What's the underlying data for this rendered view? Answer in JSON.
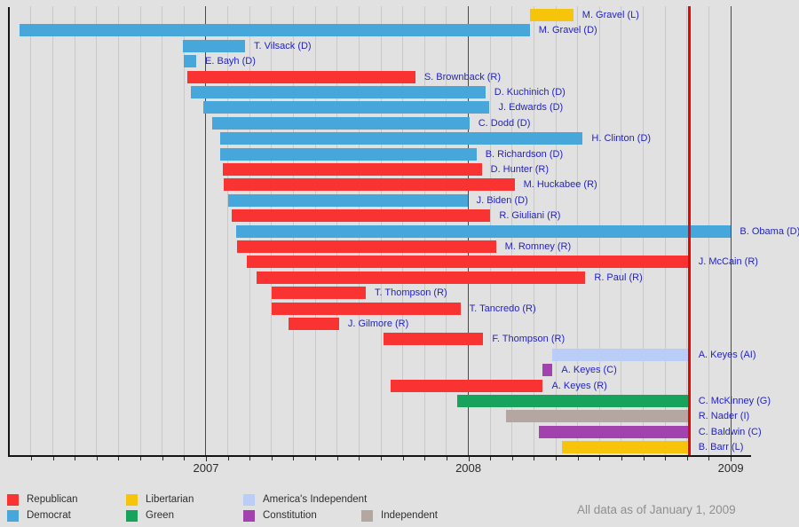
{
  "chart_data": {
    "type": "gantt",
    "description": "Timelines of 2008 U.S. presidential campaigns by candidate and party",
    "x_axis": {
      "xmin": 2006.249,
      "xmax": 2009.074,
      "major_ticks": [
        2007,
        2008,
        2009
      ],
      "tick_labels": [
        "2007",
        "2008",
        "2009"
      ],
      "minor_tick_start": 2006.3333,
      "minor_tick_end": 2008.9167,
      "minor_tick_step_months": 1,
      "grid": true
    },
    "election_line": {
      "x": 2008.843,
      "color": "#ee0202"
    },
    "party_colors": {
      "Republican": "#f93232",
      "Democrat": "#47a7db",
      "Libertarian": "#f6c50b",
      "Green": "#17a35c",
      "America's Independent": "#b9cdf6",
      "Constitution": "#a242ae",
      "Independent": "#b4a6a0"
    },
    "rows": [
      {
        "label": "M. Gravel (L)",
        "party": "Libertarian",
        "start": 2008.234,
        "end": 2008.4
      },
      {
        "label": "M. Gravel (D)",
        "party": "Democrat",
        "start": 2006.29,
        "end": 2008.234
      },
      {
        "label": "T. Vilsack (D)",
        "party": "Democrat",
        "start": 2006.912,
        "end": 2007.149
      },
      {
        "label": "E. Bayh (D)",
        "party": "Democrat",
        "start": 2006.916,
        "end": 2006.963
      },
      {
        "label": "S. Brownback (R)",
        "party": "Republican",
        "start": 2006.929,
        "end": 2007.798
      },
      {
        "label": "D. Kuchinich (D)",
        "party": "Democrat",
        "start": 2006.943,
        "end": 2008.065
      },
      {
        "label": "J. Edwards (D)",
        "party": "Democrat",
        "start": 2006.99,
        "end": 2008.081
      },
      {
        "label": "C. Dodd (D)",
        "party": "Democrat",
        "start": 2007.024,
        "end": 2008.004
      },
      {
        "label": "H. Clinton (D)",
        "party": "Democrat",
        "start": 2007.054,
        "end": 2008.436
      },
      {
        "label": "B. Richardson (D)",
        "party": "Democrat",
        "start": 2007.054,
        "end": 2008.031
      },
      {
        "label": "D. Hunter (R)",
        "party": "Republican",
        "start": 2007.064,
        "end": 2008.051
      },
      {
        "label": "M. Huckabee (R)",
        "party": "Republican",
        "start": 2007.068,
        "end": 2008.176
      },
      {
        "label": "J. Biden (D)",
        "party": "Democrat",
        "start": 2007.085,
        "end": 2007.997
      },
      {
        "label": "R. Giuliani (R)",
        "party": "Republican",
        "start": 2007.098,
        "end": 2008.084
      },
      {
        "label": "B. Obama (D)",
        "party": "Democrat",
        "start": 2007.115,
        "end": 2009.001
      },
      {
        "label": "M. Romney (R)",
        "party": "Republican",
        "start": 2007.118,
        "end": 2008.105
      },
      {
        "label": "J. McCain (R)",
        "party": "Republican",
        "start": 2007.156,
        "end": 2008.843
      },
      {
        "label": "R. Paul (R)",
        "party": "Republican",
        "start": 2007.193,
        "end": 2008.446
      },
      {
        "label": "T. Thompson (R)",
        "party": "Republican",
        "start": 2007.25,
        "end": 2007.609
      },
      {
        "label": "T. Tancredo (R)",
        "party": "Republican",
        "start": 2007.25,
        "end": 2007.97
      },
      {
        "label": "J. Gilmore (R)",
        "party": "Republican",
        "start": 2007.314,
        "end": 2007.507
      },
      {
        "label": "F. Thompson (R)",
        "party": "Republican",
        "start": 2007.676,
        "end": 2008.057
      },
      {
        "label": "A. Keyes (AI)",
        "party": "America's Independent",
        "start": 2008.321,
        "end": 2008.843
      },
      {
        "label": "A. Keyes (C)",
        "party": "Constitution",
        "start": 2008.284,
        "end": 2008.321
      },
      {
        "label": "A. Keyes (R)",
        "party": "Republican",
        "start": 2007.703,
        "end": 2008.284
      },
      {
        "label": "C. McKinney (G)",
        "party": "Green",
        "start": 2007.956,
        "end": 2008.843
      },
      {
        "label": "R. Nader (I)",
        "party": "Independent",
        "start": 2008.145,
        "end": 2008.843
      },
      {
        "label": "C. Baldwin (C)",
        "party": "Constitution",
        "start": 2008.27,
        "end": 2008.843
      },
      {
        "label": "B. Barr (L)",
        "party": "Libertarian",
        "start": 2008.358,
        "end": 2008.843
      }
    ],
    "legend": {
      "items": [
        {
          "label": "Republican",
          "party": "Republican",
          "col": 0,
          "row": 0
        },
        {
          "label": "Democrat",
          "party": "Democrat",
          "col": 0,
          "row": 1
        },
        {
          "label": "Libertarian",
          "party": "Libertarian",
          "col": 1,
          "row": 0
        },
        {
          "label": "Green",
          "party": "Green",
          "col": 1,
          "row": 1
        },
        {
          "label": "America's Independent",
          "party": "America's Independent",
          "col": 2,
          "row": 0
        },
        {
          "label": "Constitution",
          "party": "Constitution",
          "col": 2,
          "row": 1
        },
        {
          "label": "Independent",
          "party": "Independent",
          "col": 3,
          "row": 1
        }
      ]
    },
    "footnote": "All data as of January 1, 2009"
  }
}
